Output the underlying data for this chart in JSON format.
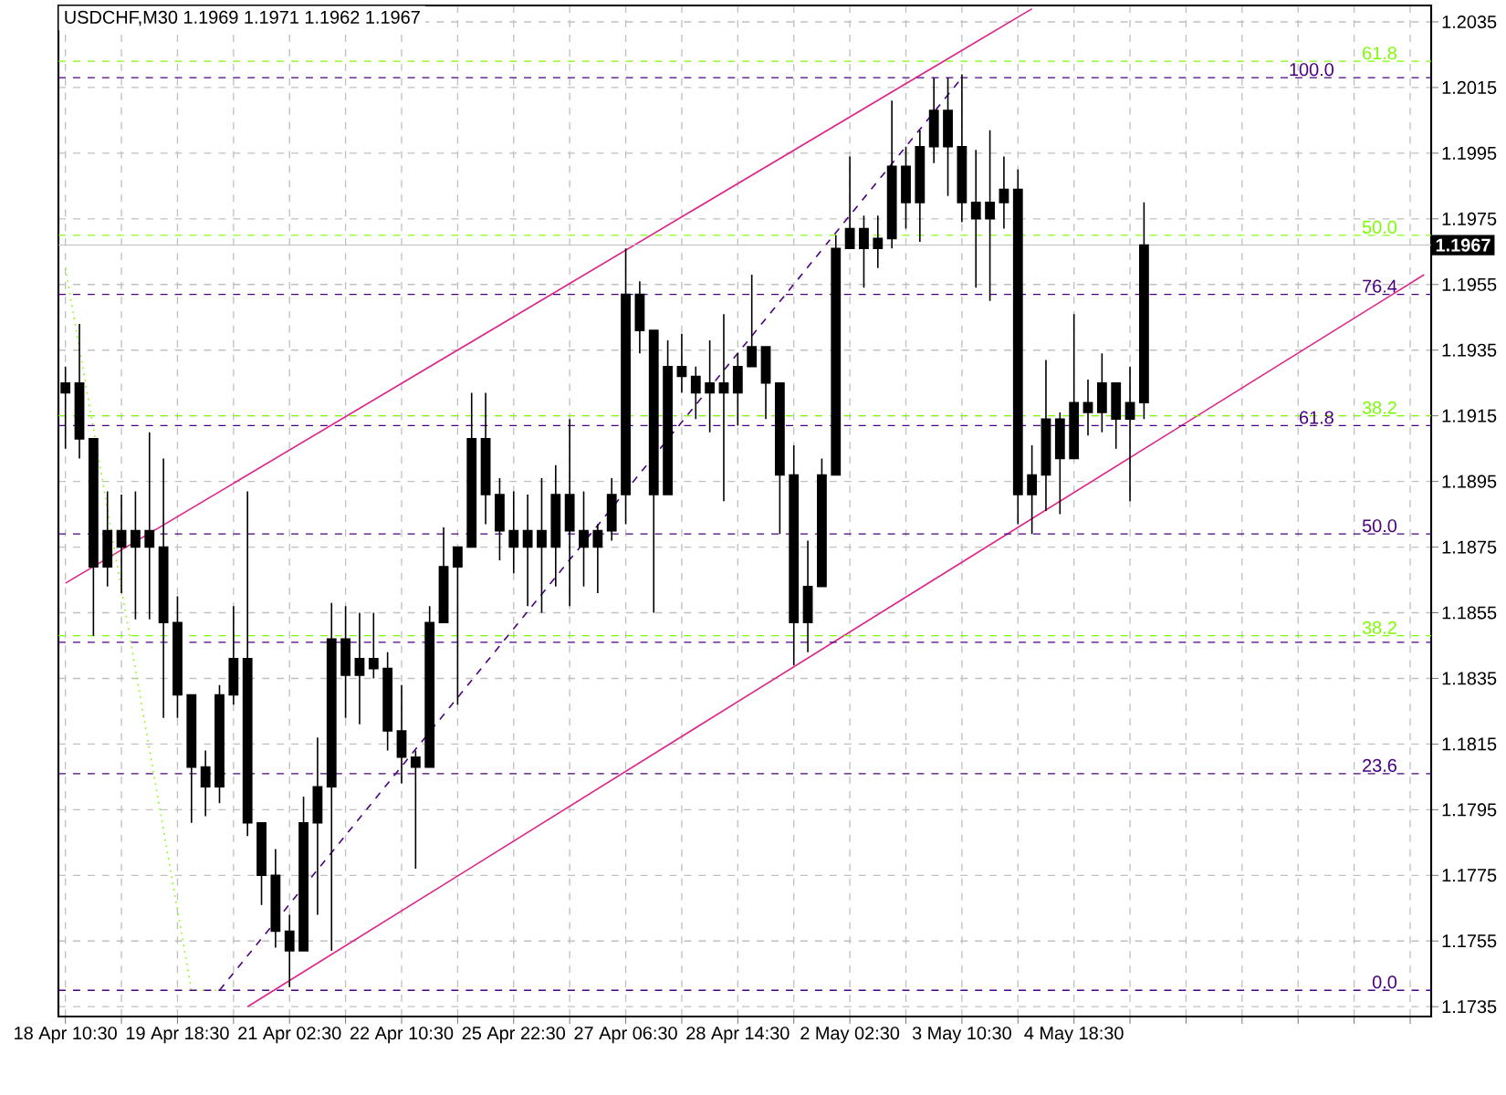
{
  "chart_data": {
    "type": "candlestick",
    "title": "USDCHF,M30  1.1969 1.1971 1.1962 1.1967",
    "categories": [
      "18 Apr 10:30",
      null,
      null,
      null,
      null,
      null,
      null,
      null,
      "19 Apr 18:30",
      null,
      null,
      null,
      null,
      null,
      null,
      null,
      "21 Apr 02:30",
      null,
      null,
      null,
      null,
      null,
      null,
      null,
      "22 Apr 10:30",
      null,
      null,
      null,
      null,
      null,
      null,
      null,
      "25 Apr 22:30",
      null,
      null,
      null,
      null,
      null,
      null,
      null,
      "27 Apr 06:30",
      null,
      null,
      null,
      null,
      null,
      null,
      null,
      "28 Apr 14:30",
      null,
      null,
      null,
      null,
      null,
      null,
      null,
      "2 May 02:30",
      null,
      null,
      null,
      null,
      null,
      null,
      null,
      "3 May 10:30",
      null,
      null,
      null,
      null,
      null,
      null,
      null,
      "4 May 18:30",
      null,
      null,
      null,
      null,
      null,
      null,
      null,
      null,
      null,
      null,
      null,
      null,
      null,
      null,
      null,
      null,
      null,
      null,
      null,
      null,
      null,
      null,
      null,
      null,
      null
    ],
    "ohlc": [
      [
        1.1922,
        1.193,
        1.1905,
        1.1925
      ],
      [
        1.1925,
        1.1943,
        1.1902,
        1.1908
      ],
      [
        1.1908,
        1.1908,
        1.1848,
        1.1869
      ],
      [
        1.1869,
        1.1892,
        1.1863,
        1.188
      ],
      [
        1.188,
        1.1891,
        1.1861,
        1.1875
      ],
      [
        1.1875,
        1.1892,
        1.1853,
        1.188
      ],
      [
        1.188,
        1.191,
        1.1853,
        1.1875
      ],
      [
        1.1875,
        1.1902,
        1.1823,
        1.1852
      ],
      [
        1.1852,
        1.186,
        1.1823,
        1.183
      ],
      [
        1.183,
        1.183,
        1.1791,
        1.1808
      ],
      [
        1.1808,
        1.1813,
        1.1793,
        1.1802
      ],
      [
        1.1802,
        1.1833,
        1.1797,
        1.183
      ],
      [
        1.183,
        1.1857,
        1.1827,
        1.1841
      ],
      [
        1.1841,
        1.1892,
        1.1787,
        1.1791
      ],
      [
        1.1791,
        1.1791,
        1.1766,
        1.1775
      ],
      [
        1.1775,
        1.1783,
        1.1753,
        1.1758
      ],
      [
        1.1758,
        1.1763,
        1.1741,
        1.1752
      ],
      [
        1.1752,
        1.1799,
        1.1752,
        1.1791
      ],
      [
        1.1791,
        1.1817,
        1.1763,
        1.1802
      ],
      [
        1.1802,
        1.1858,
        1.1752,
        1.1847
      ],
      [
        1.1847,
        1.1857,
        1.1823,
        1.1836
      ],
      [
        1.1836,
        1.1855,
        1.1821,
        1.1841
      ],
      [
        1.1841,
        1.1855,
        1.1835,
        1.1838
      ],
      [
        1.1838,
        1.1843,
        1.1813,
        1.1819
      ],
      [
        1.1819,
        1.1833,
        1.1803,
        1.1811
      ],
      [
        1.1811,
        1.1813,
        1.1777,
        1.1808
      ],
      [
        1.1808,
        1.1857,
        1.1808,
        1.1852
      ],
      [
        1.1852,
        1.1881,
        1.1852,
        1.1869
      ],
      [
        1.1869,
        1.1875,
        1.1827,
        1.1875
      ],
      [
        1.1875,
        1.1922,
        1.1875,
        1.1908
      ],
      [
        1.1908,
        1.1922,
        1.1882,
        1.1891
      ],
      [
        1.1891,
        1.1896,
        1.1871,
        1.188
      ],
      [
        1.188,
        1.1892,
        1.1867,
        1.1875
      ],
      [
        1.1875,
        1.1891,
        1.1857,
        1.188
      ],
      [
        1.188,
        1.1896,
        1.1855,
        1.1875
      ],
      [
        1.1875,
        1.19,
        1.1863,
        1.1891
      ],
      [
        1.1891,
        1.1914,
        1.1857,
        1.188
      ],
      [
        1.188,
        1.1892,
        1.1863,
        1.1875
      ],
      [
        1.1875,
        1.1882,
        1.1861,
        1.188
      ],
      [
        1.188,
        1.1896,
        1.1877,
        1.1891
      ],
      [
        1.1891,
        1.1966,
        1.1882,
        1.1952
      ],
      [
        1.1952,
        1.1956,
        1.1934,
        1.1941
      ],
      [
        1.1941,
        1.1941,
        1.1855,
        1.1891
      ],
      [
        1.1891,
        1.1938,
        1.1891,
        1.193
      ],
      [
        1.193,
        1.194,
        1.1922,
        1.1927
      ],
      [
        1.1927,
        1.193,
        1.1914,
        1.1922
      ],
      [
        1.1922,
        1.1938,
        1.191,
        1.1925
      ],
      [
        1.1925,
        1.1946,
        1.1889,
        1.1922
      ],
      [
        1.1922,
        1.1934,
        1.1912,
        1.193
      ],
      [
        1.193,
        1.1958,
        1.193,
        1.1936
      ],
      [
        1.1936,
        1.1936,
        1.1914,
        1.1925
      ],
      [
        1.1925,
        1.1925,
        1.1879,
        1.1897
      ],
      [
        1.1897,
        1.1906,
        1.1839,
        1.1852
      ],
      [
        1.1852,
        1.1877,
        1.1843,
        1.1863
      ],
      [
        1.1863,
        1.1902,
        1.1863,
        1.1897
      ],
      [
        1.1897,
        1.197,
        1.1897,
        1.1966
      ],
      [
        1.1966,
        1.1994,
        1.1966,
        1.1972
      ],
      [
        1.1972,
        1.1976,
        1.1954,
        1.1966
      ],
      [
        1.1966,
        1.1976,
        1.196,
        1.1969
      ],
      [
        1.1969,
        1.2011,
        1.1966,
        1.1991
      ],
      [
        1.1991,
        1.1997,
        1.1972,
        1.198
      ],
      [
        1.198,
        1.2002,
        1.1968,
        1.1997
      ],
      [
        1.1997,
        1.2018,
        1.1992,
        1.2008
      ],
      [
        1.2008,
        1.2018,
        1.1982,
        1.1997
      ],
      [
        1.1997,
        1.2019,
        1.1974,
        1.198
      ],
      [
        1.198,
        1.1996,
        1.1954,
        1.1975
      ],
      [
        1.1975,
        1.2002,
        1.195,
        1.198
      ],
      [
        1.198,
        1.1994,
        1.1972,
        1.1984
      ],
      [
        1.1984,
        1.199,
        1.1882,
        1.1891
      ],
      [
        1.1891,
        1.1906,
        1.1879,
        1.1897
      ],
      [
        1.1897,
        1.1932,
        1.1886,
        1.1914
      ],
      [
        1.1914,
        1.1916,
        1.1885,
        1.1902
      ],
      [
        1.1902,
        1.1946,
        1.1902,
        1.1919
      ],
      [
        1.1919,
        1.1926,
        1.1909,
        1.1916
      ],
      [
        1.1916,
        1.1934,
        1.191,
        1.1925
      ],
      [
        1.1925,
        1.1925,
        1.1905,
        1.1914
      ],
      [
        1.1914,
        1.193,
        1.1889,
        1.1919
      ],
      [
        1.1919,
        1.198,
        1.1914,
        1.1967
      ],
      null,
      null,
      null,
      null,
      null,
      null,
      null,
      null,
      null,
      null,
      null,
      null,
      null,
      null,
      null,
      null,
      null,
      null,
      null,
      null
    ],
    "color": "#000000",
    "series": [
      {
        "type": "line",
        "color": "#dd2288",
        "line_style": "solid",
        "values": [
          1.1864,
          null,
          null,
          null,
          null,
          null,
          null,
          null,
          null,
          null,
          null,
          null,
          null,
          null,
          null,
          null,
          null,
          null,
          null,
          null,
          null,
          null,
          null,
          null,
          null,
          null,
          null,
          null,
          null,
          null,
          null,
          null,
          null,
          null,
          null,
          null,
          null,
          null,
          null,
          null,
          null,
          null,
          null,
          null,
          null,
          null,
          null,
          null,
          null,
          null,
          null,
          null,
          null,
          null,
          null,
          null,
          null,
          null,
          null,
          null,
          null,
          null,
          null,
          null,
          null,
          null,
          null,
          null,
          null,
          1.2039,
          null,
          null,
          null,
          null,
          null,
          null,
          null,
          null,
          null,
          null,
          null,
          null,
          null,
          null,
          null,
          null,
          null,
          null,
          null,
          null,
          null,
          null,
          null,
          null,
          null,
          null,
          null,
          null
        ]
      },
      {
        "type": "line",
        "color": "#dd2288",
        "line_style": "solid",
        "values": [
          null,
          null,
          null,
          null,
          null,
          null,
          null,
          null,
          null,
          null,
          null,
          null,
          null,
          1.1735,
          null,
          null,
          null,
          null,
          null,
          null,
          null,
          null,
          null,
          null,
          null,
          null,
          null,
          null,
          null,
          null,
          null,
          null,
          null,
          null,
          null,
          null,
          null,
          null,
          null,
          null,
          null,
          null,
          null,
          null,
          null,
          null,
          null,
          null,
          null,
          null,
          null,
          null,
          null,
          null,
          null,
          null,
          null,
          null,
          null,
          null,
          null,
          null,
          null,
          null,
          null,
          null,
          null,
          null,
          null,
          null,
          null,
          null,
          null,
          null,
          null,
          null,
          null,
          null,
          null,
          null,
          null,
          null,
          null,
          null,
          null,
          null,
          null,
          null,
          null,
          null,
          null,
          null,
          null,
          null,
          null,
          null,
          null,
          1.1958
        ]
      },
      {
        "type": "line",
        "color": "#4b0082",
        "line_style": "dashed",
        "values": [
          null,
          null,
          null,
          null,
          null,
          null,
          null,
          null,
          null,
          null,
          null,
          1.174,
          null,
          null,
          null,
          null,
          null,
          null,
          null,
          null,
          null,
          null,
          null,
          null,
          null,
          null,
          null,
          null,
          null,
          null,
          null,
          null,
          null,
          null,
          null,
          null,
          null,
          null,
          null,
          null,
          null,
          null,
          null,
          null,
          null,
          null,
          null,
          null,
          null,
          null,
          null,
          null,
          null,
          null,
          null,
          null,
          null,
          null,
          null,
          null,
          null,
          null,
          null,
          null,
          1.2018,
          null,
          null,
          null,
          null,
          null,
          null,
          null,
          null,
          null,
          null,
          null,
          null,
          null,
          null,
          null,
          null,
          null,
          null,
          null,
          null,
          null,
          null,
          null,
          null,
          null,
          null,
          null,
          null,
          null,
          null,
          null,
          null,
          null
        ]
      },
      {
        "type": "line",
        "color": "#7cfc00",
        "line_style": "dotted",
        "values": [
          1.196,
          null,
          null,
          null,
          null,
          null,
          null,
          null,
          null,
          1.174,
          null,
          1.174,
          null,
          null,
          null,
          null,
          null,
          null,
          null,
          null,
          null,
          null,
          null,
          null,
          null,
          null,
          null,
          null,
          null,
          null,
          null,
          null,
          null,
          null,
          null,
          null,
          null,
          null,
          null,
          null,
          null,
          null,
          null,
          null,
          null,
          null,
          null,
          null,
          null,
          null,
          null,
          null,
          null,
          null,
          null,
          null,
          null,
          null,
          null,
          null,
          null,
          null,
          null,
          null,
          null,
          null,
          null,
          null,
          null,
          null,
          null,
          null,
          null,
          null,
          null,
          null,
          null,
          null,
          null,
          null,
          null,
          null,
          null,
          null,
          null,
          null,
          null,
          null,
          null,
          null,
          null,
          null,
          null,
          null,
          null,
          null,
          null,
          null
        ]
      }
    ],
    "ref_lines": [
      {
        "axis": "y",
        "value": 1.2023,
        "color": "#7cfc00",
        "line_style": "dashed"
      },
      {
        "axis": "y",
        "value": 1.2018,
        "color": "#4b0082",
        "line_style": "dashed"
      },
      {
        "axis": "y",
        "value": 1.197,
        "color": "#7cfc00",
        "line_style": "dashed"
      },
      {
        "axis": "y",
        "value": 1.1967,
        "label": "1.1967",
        "color": "#c0c0c0",
        "line_style": "solid"
      },
      {
        "axis": "y",
        "value": 1.1952,
        "color": "#4b0082",
        "line_style": "dashed"
      },
      {
        "axis": "y",
        "value": 1.1915,
        "color": "#7cfc00",
        "line_style": "dashed"
      },
      {
        "axis": "y",
        "value": 1.1912,
        "color": "#4b0082",
        "line_style": "dashed"
      },
      {
        "axis": "y",
        "value": 1.1879,
        "color": "#4b0082",
        "line_style": "dashed"
      },
      {
        "axis": "y",
        "value": 1.1848,
        "color": "#7cfc00",
        "line_style": "dashed"
      },
      {
        "axis": "y",
        "value": 1.1846,
        "color": "#4b0082",
        "line_style": "dashed"
      },
      {
        "axis": "y",
        "value": 1.1806,
        "color": "#4b0082",
        "line_style": "dashed"
      },
      {
        "axis": "y",
        "value": 1.174,
        "color": "#4b0082",
        "line_style": "dashed"
      }
    ],
    "annotations": [
      {
        "text": "61.8",
        "y": 1.2023
      },
      {
        "text": "100.0",
        "y": 1.2018
      },
      {
        "text": "50.0",
        "y": 1.197
      },
      {
        "text": "76.4",
        "y": 1.1952
      },
      {
        "text": "38.2",
        "y": 1.1915
      },
      {
        "text": "61.8",
        "y": 1.1912
      },
      {
        "text": "50.0",
        "y": 1.1879
      },
      {
        "text": "38.2",
        "y": 1.1848
      },
      {
        "text": "23.6",
        "y": 1.1806
      },
      {
        "text": "0.0",
        "y": 1.174
      }
    ],
    "ylim": [
      1.1732,
      1.204
    ],
    "yticks": [
      1.2035,
      1.2015,
      1.1995,
      1.1975,
      1.1955,
      1.1935,
      1.1915,
      1.1895,
      1.1875,
      1.1855,
      1.1835,
      1.1815,
      1.1795,
      1.1775,
      1.1755,
      1.1735
    ],
    "grid": true
  }
}
